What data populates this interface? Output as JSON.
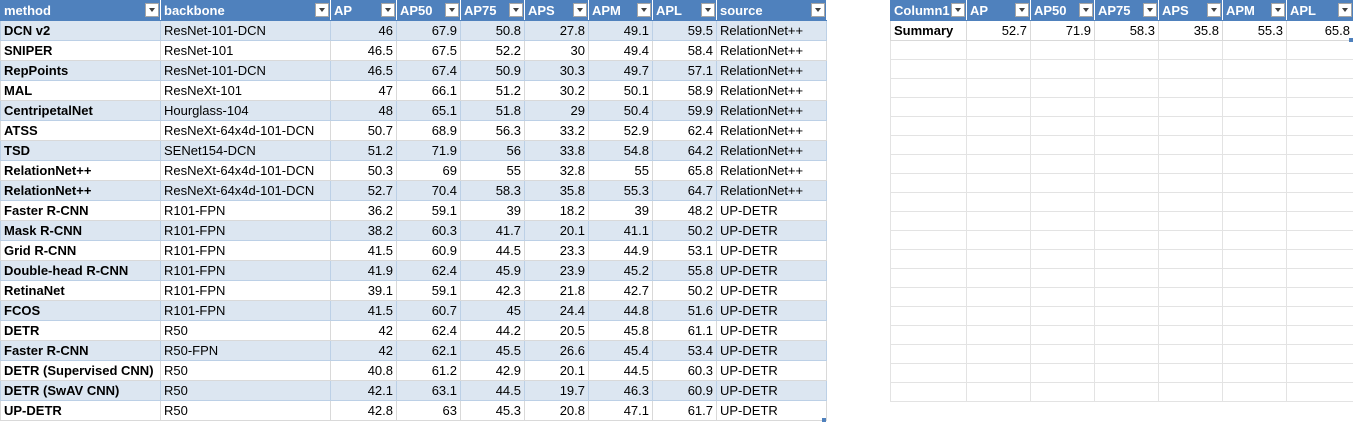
{
  "table_main": {
    "headers": [
      "method",
      "backbone",
      "AP",
      "AP50",
      "AP75",
      "APS",
      "APM",
      "APL",
      "source"
    ],
    "rows": [
      [
        "DCN v2",
        "ResNet-101-DCN",
        "46",
        "67.9",
        "50.8",
        "27.8",
        "49.1",
        "59.5",
        "RelationNet++"
      ],
      [
        "SNIPER",
        "ResNet-101",
        "46.5",
        "67.5",
        "52.2",
        "30",
        "49.4",
        "58.4",
        "RelationNet++"
      ],
      [
        "RepPoints",
        "ResNet-101-DCN",
        "46.5",
        "67.4",
        "50.9",
        "30.3",
        "49.7",
        "57.1",
        "RelationNet++"
      ],
      [
        "MAL",
        "ResNeXt-101",
        "47",
        "66.1",
        "51.2",
        "30.2",
        "50.1",
        "58.9",
        "RelationNet++"
      ],
      [
        "CentripetalNet",
        "Hourglass-104",
        "48",
        "65.1",
        "51.8",
        "29",
        "50.4",
        "59.9",
        "RelationNet++"
      ],
      [
        "ATSS",
        "ResNeXt-64x4d-101-DCN",
        "50.7",
        "68.9",
        "56.3",
        "33.2",
        "52.9",
        "62.4",
        "RelationNet++"
      ],
      [
        "TSD",
        "SENet154-DCN",
        "51.2",
        "71.9",
        "56",
        "33.8",
        "54.8",
        "64.2",
        "RelationNet++"
      ],
      [
        "RelationNet++",
        "ResNeXt-64x4d-101-DCN",
        "50.3",
        "69",
        "55",
        "32.8",
        "55",
        "65.8",
        "RelationNet++"
      ],
      [
        "RelationNet++",
        "ResNeXt-64x4d-101-DCN",
        "52.7",
        "70.4",
        "58.3",
        "35.8",
        "55.3",
        "64.7",
        "RelationNet++"
      ],
      [
        "Faster R-CNN",
        "R101-FPN",
        "36.2",
        "59.1",
        "39",
        "18.2",
        "39",
        "48.2",
        "UP-DETR"
      ],
      [
        "Mask R-CNN",
        "R101-FPN",
        "38.2",
        "60.3",
        "41.7",
        "20.1",
        "41.1",
        "50.2",
        "UP-DETR"
      ],
      [
        "Grid R-CNN",
        "R101-FPN",
        "41.5",
        "60.9",
        "44.5",
        "23.3",
        "44.9",
        "53.1",
        "UP-DETR"
      ],
      [
        "Double-head R-CNN",
        "R101-FPN",
        "41.9",
        "62.4",
        "45.9",
        "23.9",
        "45.2",
        "55.8",
        "UP-DETR"
      ],
      [
        "RetinaNet",
        "R101-FPN",
        "39.1",
        "59.1",
        "42.3",
        "21.8",
        "42.7",
        "50.2",
        "UP-DETR"
      ],
      [
        "FCOS",
        "R101-FPN",
        "41.5",
        "60.7",
        "45",
        "24.4",
        "44.8",
        "51.6",
        "UP-DETR"
      ],
      [
        "DETR",
        "R50",
        "42",
        "62.4",
        "44.2",
        "20.5",
        "45.8",
        "61.1",
        "UP-DETR"
      ],
      [
        "Faster R-CNN",
        "R50-FPN",
        "42",
        "62.1",
        "45.5",
        "26.6",
        "45.4",
        "53.4",
        "UP-DETR"
      ],
      [
        "DETR (Supervised CNN)",
        "R50",
        "40.8",
        "61.2",
        "42.9",
        "20.1",
        "44.5",
        "60.3",
        "UP-DETR"
      ],
      [
        "DETR (SwAV CNN)",
        "R50",
        "42.1",
        "63.1",
        "44.5",
        "19.7",
        "46.3",
        "60.9",
        "UP-DETR"
      ],
      [
        "UP-DETR",
        "R50",
        "42.8",
        "63",
        "45.3",
        "20.8",
        "47.1",
        "61.7",
        "UP-DETR"
      ]
    ]
  },
  "table_summary": {
    "headers": [
      "Column1",
      "AP",
      "AP50",
      "AP75",
      "APS",
      "APM",
      "APL"
    ],
    "rows": [
      [
        "Summary",
        "52.7",
        "71.9",
        "58.3",
        "35.8",
        "55.3",
        "65.8"
      ]
    ],
    "blank_rows": 19
  },
  "colors": {
    "header_bg": "#4f81bd",
    "band_bg": "#dce6f1"
  }
}
